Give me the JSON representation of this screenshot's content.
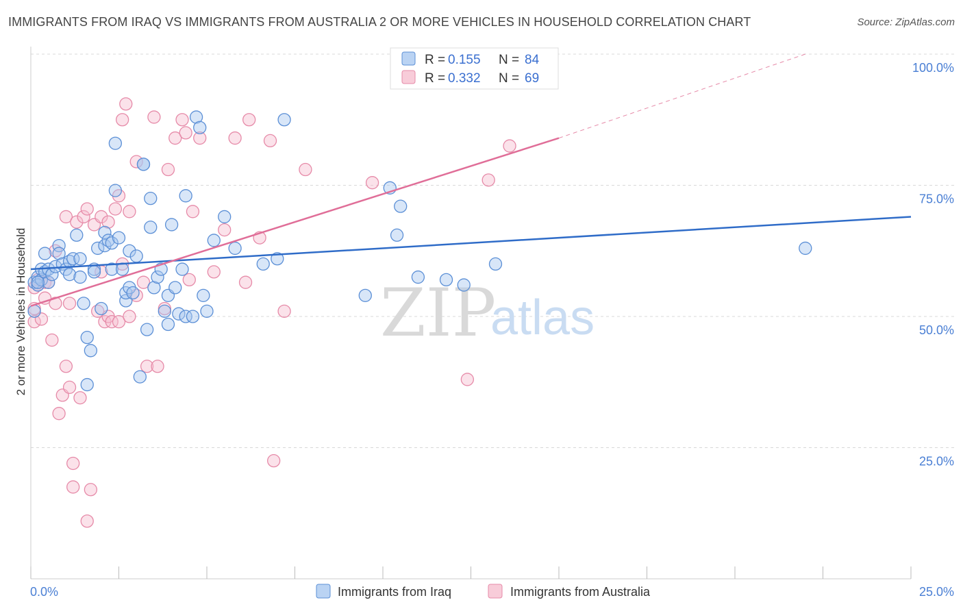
{
  "header": {
    "title": "IMMIGRANTS FROM IRAQ VS IMMIGRANTS FROM AUSTRALIA 2 OR MORE VEHICLES IN HOUSEHOLD CORRELATION CHART",
    "source": "Source: ZipAtlas.com"
  },
  "watermark": {
    "zip": "ZIP",
    "atlas": "atlas"
  },
  "colors": {
    "iraq_fill": "#a9c8f0",
    "iraq_stroke": "#5b8fd6",
    "iraq_line": "#2f6cc8",
    "australia_fill": "#f6bfd0",
    "australia_stroke": "#e68aa8",
    "australia_line": "#e06e98",
    "grid": "#d8d8d8",
    "tick_text": "#4a7fd4"
  },
  "legend": {
    "r_label": "R =",
    "n_label": "N =",
    "iraq": {
      "r": "0.155",
      "n": "84"
    },
    "australia": {
      "r": "0.332",
      "n": "69"
    }
  },
  "chart_data": {
    "type": "scatter",
    "title": "IMMIGRANTS FROM IRAQ VS IMMIGRANTS FROM AUSTRALIA 2 OR MORE VEHICLES IN HOUSEHOLD CORRELATION CHART",
    "xlabel": "",
    "ylabel": "2 or more Vehicles in Household",
    "xlim": [
      0,
      25
    ],
    "ylim": [
      0,
      100
    ],
    "x_ticks": [
      "0.0%",
      "25.0%"
    ],
    "y_ticks": [
      "25.0%",
      "50.0%",
      "75.0%",
      "100.0%"
    ],
    "y_tick_values": [
      25,
      50,
      75,
      100
    ],
    "grid": "horizontal-dashed",
    "legend_placement": "top-center",
    "series": [
      {
        "name": "Immigrants from Iraq",
        "r": 0.155,
        "n": 84,
        "trend": {
          "x": [
            0,
            25
          ],
          "y": [
            59.0,
            69.0
          ],
          "dashed_extension": false
        },
        "points": [
          [
            0.1,
            51.0
          ],
          [
            0.1,
            56.5
          ],
          [
            0.2,
            57.5
          ],
          [
            0.2,
            56.0
          ],
          [
            0.3,
            57.0
          ],
          [
            0.3,
            59.0
          ],
          [
            0.4,
            58.5
          ],
          [
            0.4,
            62.0
          ],
          [
            0.5,
            56.5
          ],
          [
            0.5,
            59.0
          ],
          [
            0.6,
            58.0
          ],
          [
            0.7,
            59.5
          ],
          [
            0.8,
            63.5
          ],
          [
            0.8,
            62.0
          ],
          [
            0.9,
            60.0
          ],
          [
            1.0,
            59.0
          ],
          [
            1.1,
            58.0
          ],
          [
            1.1,
            60.5
          ],
          [
            1.2,
            61.0
          ],
          [
            1.3,
            65.5
          ],
          [
            1.4,
            57.5
          ],
          [
            1.4,
            61.0
          ],
          [
            1.5,
            52.5
          ],
          [
            1.6,
            46.0
          ],
          [
            1.6,
            37.0
          ],
          [
            1.7,
            43.5
          ],
          [
            1.8,
            59.0
          ],
          [
            1.8,
            58.5
          ],
          [
            1.9,
            63.0
          ],
          [
            2.0,
            51.5
          ],
          [
            2.1,
            66.0
          ],
          [
            2.1,
            63.5
          ],
          [
            2.2,
            64.5
          ],
          [
            2.3,
            64.0
          ],
          [
            2.3,
            59.0
          ],
          [
            2.4,
            74.0
          ],
          [
            2.4,
            83.0
          ],
          [
            2.5,
            65.0
          ],
          [
            2.6,
            59.0
          ],
          [
            2.7,
            53.0
          ],
          [
            2.7,
            54.5
          ],
          [
            2.8,
            62.5
          ],
          [
            2.8,
            55.5
          ],
          [
            2.9,
            54.5
          ],
          [
            3.0,
            61.5
          ],
          [
            3.1,
            38.5
          ],
          [
            3.2,
            79.0
          ],
          [
            3.3,
            47.5
          ],
          [
            3.4,
            72.5
          ],
          [
            3.4,
            67.0
          ],
          [
            3.5,
            55.5
          ],
          [
            3.6,
            57.5
          ],
          [
            3.7,
            59.0
          ],
          [
            3.8,
            51.0
          ],
          [
            3.9,
            54.0
          ],
          [
            3.9,
            48.5
          ],
          [
            4.0,
            67.5
          ],
          [
            4.1,
            55.5
          ],
          [
            4.2,
            50.5
          ],
          [
            4.3,
            59.0
          ],
          [
            4.4,
            50.0
          ],
          [
            4.4,
            73.0
          ],
          [
            4.6,
            50.0
          ],
          [
            4.7,
            88.0
          ],
          [
            4.8,
            86.0
          ],
          [
            4.9,
            54.0
          ],
          [
            5.0,
            51.0
          ],
          [
            5.2,
            64.5
          ],
          [
            5.5,
            69.0
          ],
          [
            5.8,
            63.0
          ],
          [
            6.6,
            60.0
          ],
          [
            7.0,
            61.0
          ],
          [
            7.2,
            87.5
          ],
          [
            9.5,
            54.0
          ],
          [
            10.2,
            74.5
          ],
          [
            10.5,
            71.0
          ],
          [
            10.4,
            65.5
          ],
          [
            11.0,
            57.5
          ],
          [
            11.8,
            57.0
          ],
          [
            12.3,
            56.0
          ],
          [
            13.2,
            60.0
          ],
          [
            22.0,
            63.0
          ],
          [
            3.2,
            79.0
          ],
          [
            0.2,
            56.5
          ]
        ]
      },
      {
        "name": "Immigrants from Australia",
        "r": 0.332,
        "n": 69,
        "trend": {
          "x": [
            0,
            15
          ],
          "y": [
            52.0,
            84.0
          ],
          "dashed_extension_to": [
            22,
            100
          ]
        },
        "points": [
          [
            0.1,
            51.5
          ],
          [
            0.1,
            55.5
          ],
          [
            0.1,
            49.0
          ],
          [
            0.2,
            57.0
          ],
          [
            0.2,
            56.0
          ],
          [
            0.3,
            49.5
          ],
          [
            0.4,
            53.5
          ],
          [
            0.4,
            56.5
          ],
          [
            0.5,
            56.5
          ],
          [
            0.6,
            45.5
          ],
          [
            0.7,
            52.5
          ],
          [
            0.7,
            62.5
          ],
          [
            0.8,
            31.5
          ],
          [
            0.9,
            35.0
          ],
          [
            1.0,
            40.5
          ],
          [
            1.0,
            69.0
          ],
          [
            1.1,
            36.5
          ],
          [
            1.1,
            52.5
          ],
          [
            1.2,
            17.5
          ],
          [
            1.2,
            22.0
          ],
          [
            1.3,
            68.0
          ],
          [
            1.4,
            34.5
          ],
          [
            1.5,
            69.0
          ],
          [
            1.6,
            70.5
          ],
          [
            1.6,
            11.0
          ],
          [
            1.7,
            17.0
          ],
          [
            1.8,
            67.5
          ],
          [
            1.9,
            51.0
          ],
          [
            2.0,
            69.0
          ],
          [
            2.0,
            58.5
          ],
          [
            2.1,
            49.0
          ],
          [
            2.2,
            68.0
          ],
          [
            2.2,
            50.0
          ],
          [
            2.3,
            49.0
          ],
          [
            2.4,
            70.5
          ],
          [
            2.5,
            73.0
          ],
          [
            2.5,
            49.0
          ],
          [
            2.6,
            87.5
          ],
          [
            2.6,
            60.0
          ],
          [
            2.7,
            90.5
          ],
          [
            2.8,
            70.0
          ],
          [
            2.8,
            50.0
          ],
          [
            3.0,
            54.0
          ],
          [
            3.0,
            79.5
          ],
          [
            3.2,
            56.5
          ],
          [
            3.3,
            40.5
          ],
          [
            3.5,
            88.0
          ],
          [
            3.6,
            40.5
          ],
          [
            3.8,
            51.5
          ],
          [
            3.9,
            78.0
          ],
          [
            4.1,
            84.0
          ],
          [
            4.3,
            87.5
          ],
          [
            4.4,
            85.0
          ],
          [
            4.5,
            57.0
          ],
          [
            4.6,
            70.0
          ],
          [
            4.8,
            84.0
          ],
          [
            5.2,
            58.5
          ],
          [
            5.5,
            66.5
          ],
          [
            5.8,
            84.0
          ],
          [
            6.1,
            56.5
          ],
          [
            6.2,
            87.5
          ],
          [
            6.5,
            65.0
          ],
          [
            6.8,
            83.5
          ],
          [
            6.9,
            22.5
          ],
          [
            7.2,
            51.0
          ],
          [
            7.8,
            78.0
          ],
          [
            9.7,
            75.5
          ],
          [
            12.4,
            38.0
          ],
          [
            13.0,
            76.0
          ],
          [
            13.6,
            82.5
          ]
        ]
      }
    ]
  },
  "axis": {
    "ylabel": "2 or more Vehicles in Household",
    "x_tick_left": "0.0%",
    "x_tick_right": "25.0%",
    "y_ticks": [
      {
        "value": 100,
        "label": "100.0%"
      },
      {
        "value": 75,
        "label": "75.0%"
      },
      {
        "value": 50,
        "label": "50.0%"
      },
      {
        "value": 25,
        "label": "25.0%"
      }
    ]
  },
  "bottom_legend": {
    "iraq_label": "Immigrants from Iraq",
    "australia_label": "Immigrants from Australia"
  }
}
